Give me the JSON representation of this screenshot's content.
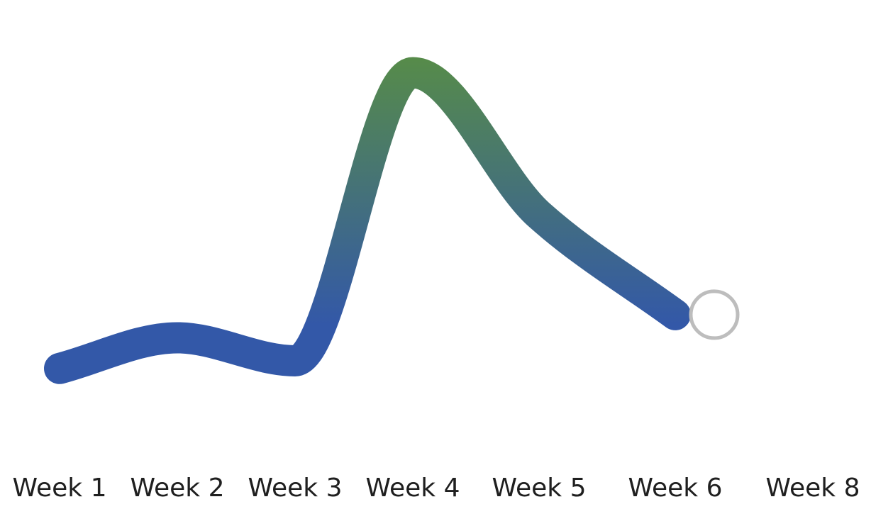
{
  "chart_data": {
    "type": "line",
    "title": "",
    "xlabel": "",
    "ylabel": "",
    "grid": false,
    "legend": "none",
    "categories": [
      "Week 1",
      "Week 2",
      "Week 3",
      "Week 4",
      "Week 5",
      "Week 6",
      "Week 8"
    ],
    "series": [
      {
        "name": "",
        "values": [
          1.0,
          1.8,
          1.2,
          8.7,
          5.0,
          2.4,
          null
        ],
        "gradient_colors": [
          "#3358a8",
          "#5b923d"
        ],
        "end_marker": "hollow-circle"
      }
    ],
    "marker_color": "#bdbdbd",
    "ylim": [
      0,
      10
    ]
  }
}
